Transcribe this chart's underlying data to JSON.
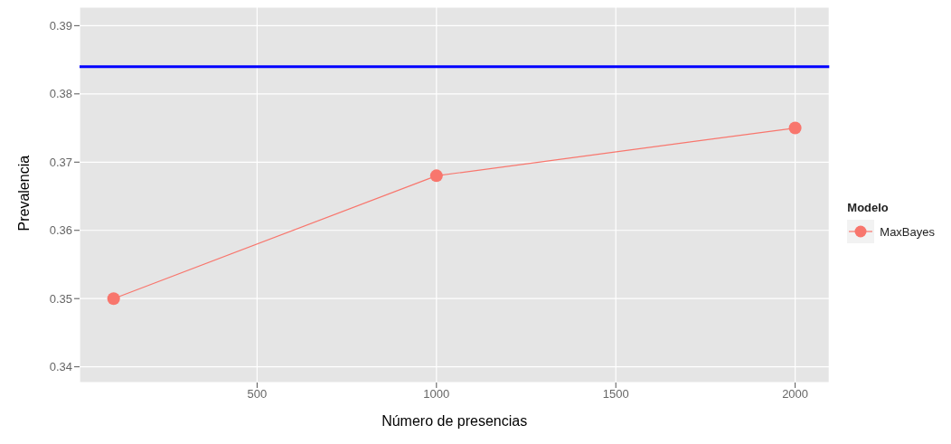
{
  "chart_data": {
    "type": "line",
    "xlabel": "Número de presencias",
    "ylabel": "Prevalencia",
    "legend_title": "Modelo",
    "x": [
      100,
      1000,
      2000
    ],
    "series": [
      {
        "name": "MaxBayes",
        "color": "#f8766d",
        "values": [
          0.35,
          0.368,
          0.375
        ]
      }
    ],
    "xlim": [
      5,
      2095
    ],
    "xticks": [
      500,
      1000,
      1500,
      2000
    ],
    "ylim": [
      0.3377,
      0.3927
    ],
    "yticks": [
      0.34,
      0.35,
      0.36,
      0.37,
      0.38,
      0.39
    ],
    "ref_lines": [
      {
        "axis": "y",
        "value": 0.384,
        "color": "#0000ff"
      }
    ],
    "grid": true,
    "legend": "right",
    "marker": "circle",
    "line_style": "solid"
  }
}
